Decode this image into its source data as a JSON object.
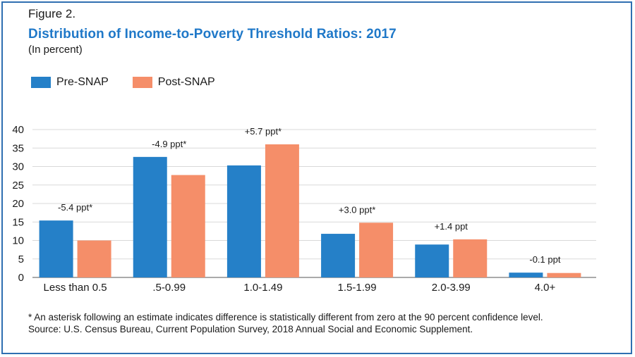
{
  "figure_label": "Figure 2.",
  "colors": {
    "pre": "#2580c8",
    "post": "#f58e69",
    "title": "#1f78c8",
    "frame": "#2f6fb1",
    "grid": "#d9d9d9"
  },
  "chart_data": {
    "type": "bar",
    "title": "Distribution of Income-to-Poverty Threshold Ratios: 2017",
    "subtitle": "(In percent)",
    "xlabel": "",
    "ylabel": "",
    "ylim": [
      0,
      40
    ],
    "yticks": [
      0,
      5,
      10,
      15,
      20,
      25,
      30,
      35,
      40
    ],
    "categories": [
      "Less than 0.5",
      ".5-0.99",
      "1.0-1.49",
      "1.5-1.99",
      "2.0-3.99",
      "4.0+"
    ],
    "series": [
      {
        "name": "Pre-SNAP",
        "values": [
          15.4,
          32.6,
          30.3,
          11.8,
          8.9,
          1.3
        ]
      },
      {
        "name": "Post-SNAP",
        "values": [
          10.0,
          27.7,
          36.0,
          14.8,
          10.3,
          1.2
        ]
      }
    ],
    "annotations": [
      "-5.4 ppt*",
      "-4.9 ppt*",
      "+5.7 ppt*",
      "+3.0 ppt*",
      "+1.4 ppt",
      "-0.1 ppt"
    ],
    "legend_position": "top-left",
    "grid": true
  },
  "notes": {
    "asterisk": "* An asterisk following an estimate indicates difference is statistically different from zero at the 90 percent confidence level.",
    "source": "Source: U.S. Census Bureau, Current Population Survey, 2018 Annual Social and Economic Supplement."
  }
}
